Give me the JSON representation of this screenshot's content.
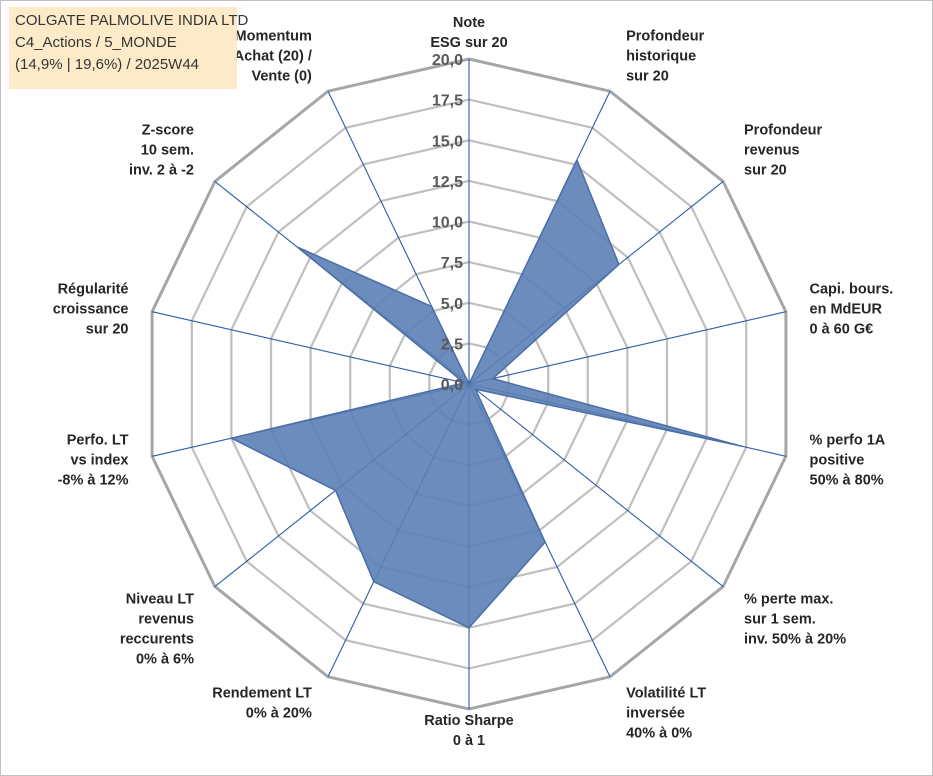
{
  "title": {
    "line1": "COLGATE PALMOLIVE INDIA LTD",
    "line2": "C4_Actions / 5_MONDE",
    "line3": "(14,9% | 19,6%) / 2025W44"
  },
  "colors": {
    "fill": "#5b7fb5",
    "stroke": "#4a6fa5",
    "spoke": "#2f5aa8",
    "grid": "#bfbfbf",
    "outer_grid": "#a6a6a6"
  },
  "chart_data": {
    "type": "radar",
    "title": "COLGATE PALMOLIVE INDIA LTD",
    "rlim": [
      0,
      20
    ],
    "ticks": [
      "0,0",
      "2,5",
      "5,0",
      "7,5",
      "10,0",
      "12,5",
      "15,0",
      "17,5",
      "20,0"
    ],
    "grid": true,
    "categories": [
      {
        "label": [
          "Note",
          "ESG sur 20"
        ],
        "value": 0
      },
      {
        "label": [
          "Profondeur",
          "historique",
          "sur 20"
        ],
        "value": 15.3
      },
      {
        "label": [
          "Profondeur",
          "revenus",
          "sur 20"
        ],
        "value": 11.8
      },
      {
        "label": [
          "Capi. bours.",
          "en MdEUR",
          "0 à 60 G€"
        ],
        "value": 1.5
      },
      {
        "label": [
          "% perfo 1A",
          "positive",
          "50% à 80%"
        ],
        "value": 17.2
      },
      {
        "label": [
          "% perte max.",
          "sur 1 sem.",
          "inv. 50% à 20%"
        ],
        "value": 0.5
      },
      {
        "label": [
          "Volatilité LT",
          "inversée",
          "40% à 0%"
        ],
        "value": 10.8
      },
      {
        "label": [
          "Ratio Sharpe",
          "0 à 1"
        ],
        "value": 15.0
      },
      {
        "label": [
          "Rendement LT",
          "0% à 20%"
        ],
        "value": 13.5
      },
      {
        "label": [
          "Niveau LT",
          "revenus",
          "reccurents",
          "0% à 6%"
        ],
        "value": 10.5
      },
      {
        "label": [
          "Perfo. LT",
          "vs index",
          "-8% à 12%"
        ],
        "value": 15.0
      },
      {
        "label": [
          "Régularité",
          "croissance",
          "sur 20"
        ],
        "value": 0.3
      },
      {
        "label": [
          "Z-score",
          "10 sem.",
          "inv. 2 à -2"
        ],
        "value": 13.5
      },
      {
        "label": [
          "Momentum",
          "Achat (20) /",
          "Vente (0)"
        ],
        "value": 5.3
      }
    ]
  }
}
